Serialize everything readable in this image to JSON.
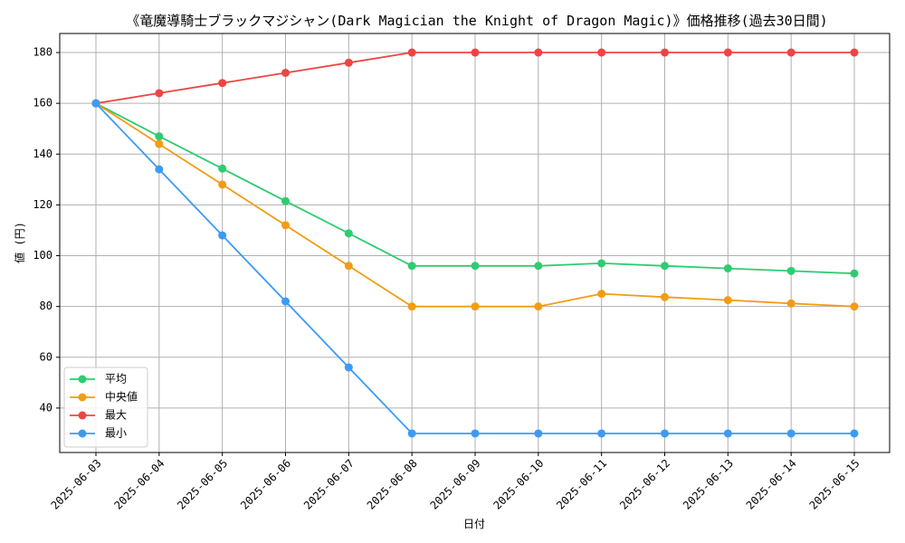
{
  "chart_data": {
    "type": "line",
    "title": "《竜魔導騎士ブラックマジシャン(Dark Magician the Knight of Dragon Magic)》価格推移(過去30日間)",
    "xlabel": "日付",
    "ylabel": "値 (円)",
    "x": [
      "2025-06-03",
      "2025-06-04",
      "2025-06-05",
      "2025-06-06",
      "2025-06-07",
      "2025-06-08",
      "2025-06-09",
      "2025-06-10",
      "2025-06-11",
      "2025-06-12",
      "2025-06-13",
      "2025-06-14",
      "2025-06-15"
    ],
    "ylim": [
      22.5,
      187.5
    ],
    "yticks": [
      40,
      60,
      80,
      100,
      120,
      140,
      160,
      180
    ],
    "grid": true,
    "legend_position": "lower-left",
    "series": [
      {
        "name": "平均",
        "color": "#2ecc71",
        "values": [
          160,
          147,
          134.3,
          121.5,
          108.8,
          96,
          96,
          96,
          97,
          96,
          95,
          94,
          93
        ]
      },
      {
        "name": "中央値",
        "color": "#f39c12",
        "values": [
          160,
          144,
          128,
          112,
          96,
          80,
          80,
          80,
          85,
          83.7,
          82.5,
          81.2,
          80
        ]
      },
      {
        "name": "最大",
        "color": "#ef4444",
        "values": [
          160,
          164,
          168,
          172,
          176,
          180,
          180,
          180,
          180,
          180,
          180,
          180,
          180
        ]
      },
      {
        "name": "最小",
        "color": "#3b9bf5",
        "values": [
          160,
          134,
          108,
          82,
          56,
          30,
          30,
          30,
          30,
          30,
          30,
          30,
          30
        ]
      }
    ]
  }
}
